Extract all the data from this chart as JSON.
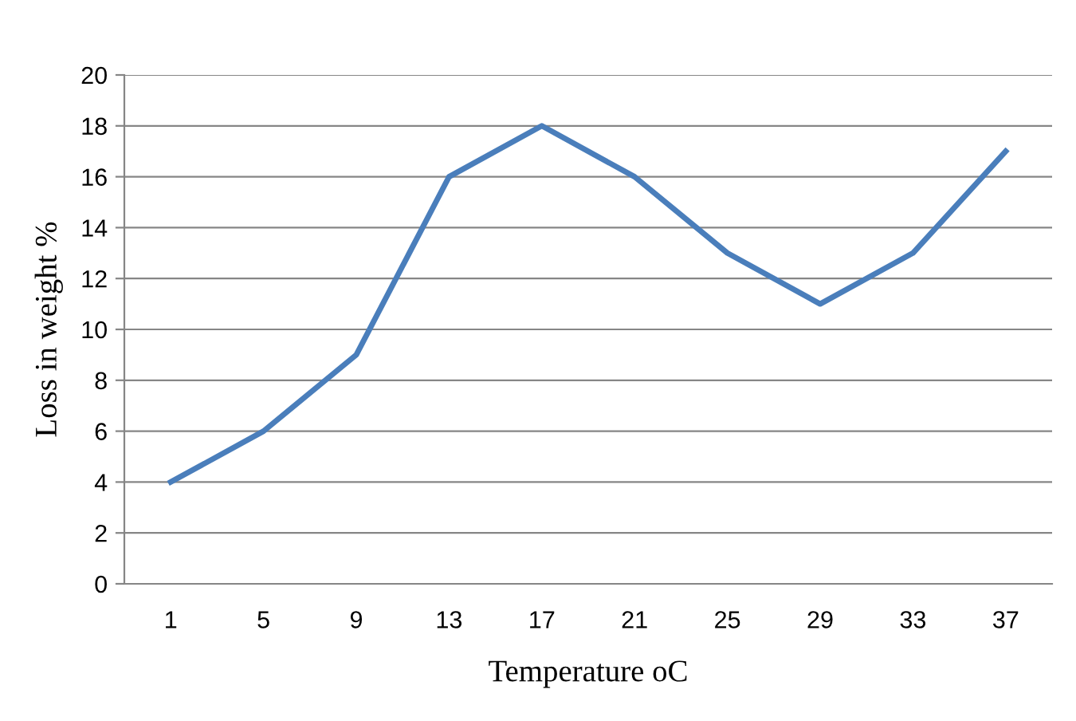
{
  "chart_data": {
    "type": "line",
    "xlabel": "Temperature oC",
    "ylabel": "Loss in weight %",
    "categories": [
      "1",
      "5",
      "9",
      "13",
      "17",
      "21",
      "25",
      "29",
      "33",
      "37"
    ],
    "series": [
      {
        "color": "#4a7ebb",
        "values": [
          4,
          6,
          9,
          16,
          18,
          16,
          13,
          11,
          13,
          17
        ]
      }
    ],
    "ylim": [
      0,
      20
    ],
    "yticks": [
      0,
      2,
      4,
      6,
      8,
      10,
      12,
      14,
      16,
      18,
      20
    ],
    "grid": "y",
    "legend": false,
    "marker": "none",
    "line_style": "solid"
  }
}
